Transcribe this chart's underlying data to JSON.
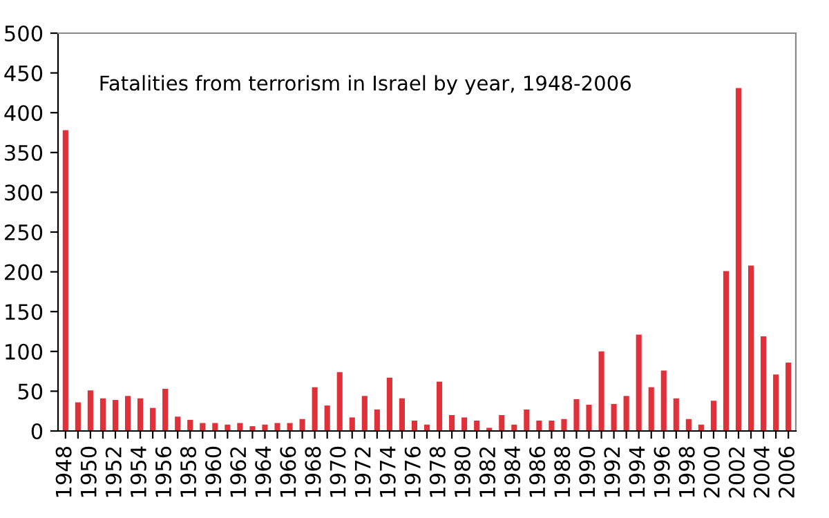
{
  "chart_data": {
    "type": "bar",
    "title": "Fatalities from terrorism in Israel by year, 1948-2006",
    "categories": [
      "1948",
      null,
      "1950",
      null,
      "1952",
      null,
      "1954",
      null,
      "1956",
      null,
      "1958",
      null,
      "1960",
      null,
      "1962",
      null,
      "1964",
      null,
      "1966",
      null,
      "1968",
      null,
      "1970",
      null,
      "1972",
      null,
      "1974",
      null,
      "1976",
      null,
      "1978",
      null,
      "1980",
      null,
      "1982",
      null,
      "1984",
      null,
      "1986",
      null,
      "1988",
      null,
      "1990",
      null,
      "1992",
      null,
      "1994",
      null,
      "1996",
      null,
      "1998",
      null,
      "2000",
      null,
      "2002",
      null,
      "2004",
      null,
      "2006"
    ],
    "values": [
      378,
      36,
      51,
      41,
      39,
      44,
      41,
      29,
      53,
      18,
      14,
      10,
      10,
      8,
      10,
      6,
      8,
      10,
      10,
      15,
      55,
      32,
      74,
      17,
      44,
      27,
      67,
      41,
      13,
      8,
      62,
      20,
      17,
      13,
      4,
      20,
      8,
      27,
      13,
      13,
      15,
      40,
      33,
      100,
      34,
      44,
      121,
      55,
      76,
      41,
      15,
      8,
      38,
      201,
      431,
      208,
      119,
      71,
      86
    ],
    "color": "#e0303a",
    "ylim": [
      0,
      500
    ],
    "yticks": [
      0,
      50,
      100,
      150,
      200,
      250,
      300,
      350,
      400,
      450,
      500
    ],
    "grid": false,
    "legend": false
  }
}
